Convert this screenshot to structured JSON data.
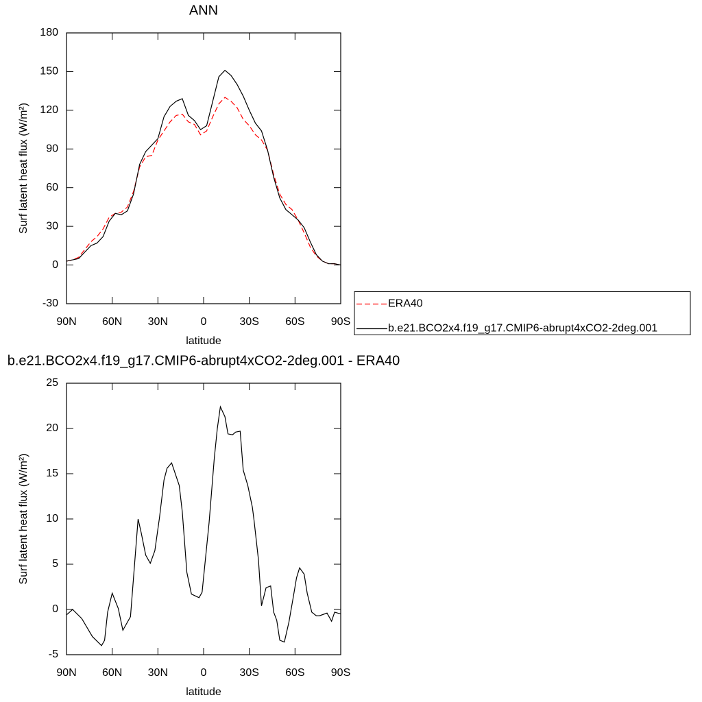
{
  "chart_data": [
    {
      "type": "line",
      "title": "ANN",
      "xlabel": "latitude",
      "ylabel": "Surf latent heat flux (W/m²)",
      "x": [
        90,
        86,
        82,
        78,
        74,
        70,
        66,
        62,
        58,
        54,
        50,
        46,
        42,
        38,
        34,
        30,
        26,
        22,
        18,
        14,
        10,
        6,
        2,
        -2,
        -6,
        -10,
        -14,
        -18,
        -22,
        -26,
        -30,
        -34,
        -38,
        -42,
        -46,
        -50,
        -54,
        -58,
        -62,
        -66,
        -70,
        -74,
        -78,
        -82,
        -86,
        -90
      ],
      "series": [
        {
          "name": "ERA40",
          "color": "#ff0000",
          "linestyle": "dashed",
          "values": [
            3,
            4,
            6,
            12,
            18,
            22,
            28,
            37,
            40,
            41,
            45,
            57,
            76,
            84,
            85,
            97,
            104,
            111,
            116,
            117,
            111,
            109,
            101,
            104,
            115,
            125,
            130,
            127,
            122,
            113,
            108,
            101,
            97,
            89,
            70,
            55,
            47,
            43,
            35,
            25,
            14,
            7,
            3,
            1,
            1,
            0
          ]
        },
        {
          "name": "b.e21.BCO2x4.f19_g17.CMIP6-abrupt4xCO2-2deg.001",
          "color": "#000000",
          "linestyle": "solid",
          "values": [
            3,
            4,
            5,
            10,
            15,
            17,
            22,
            34,
            40,
            39,
            42,
            55,
            78,
            88,
            93,
            98,
            115,
            123,
            127,
            129,
            116,
            112,
            105,
            108,
            127,
            146,
            151,
            147,
            140,
            131,
            120,
            110,
            104,
            89,
            68,
            52,
            43,
            39,
            35,
            29,
            18,
            8,
            3,
            1,
            1,
            0
          ]
        }
      ],
      "xlim": [
        90,
        -90
      ],
      "ylim": [
        -30,
        180
      ],
      "xticks": [
        {
          "value": 90,
          "label": "90N"
        },
        {
          "value": 60,
          "label": "60N"
        },
        {
          "value": 30,
          "label": "30N"
        },
        0,
        {
          "value": -30,
          "label": "30S"
        },
        {
          "value": -60,
          "label": "60S"
        },
        {
          "value": -90,
          "label": "90S"
        }
      ],
      "yticks": [
        -30,
        0,
        30,
        60,
        90,
        120,
        150,
        180
      ],
      "legend": "right"
    },
    {
      "type": "line",
      "title": "b.e21.BCO2x4.f19_g17.CMIP6-abrupt4xCO2-2deg.001 - ERA40",
      "xlabel": "latitude",
      "ylabel": "Surf latent heat flux (W/m²)",
      "x": [
        90,
        86,
        80,
        73,
        67,
        65,
        63,
        60,
        56,
        53,
        48,
        43,
        41,
        38,
        35,
        32,
        29,
        26,
        24,
        21,
        16,
        14,
        11,
        8,
        3,
        1,
        -3.6,
        -7,
        -9,
        -11,
        -14,
        -16,
        -19,
        -21,
        -24,
        -26,
        -29,
        -32,
        -33,
        -36,
        -38,
        -41,
        -44,
        -46,
        -48,
        -50,
        -53,
        -56,
        -59,
        -61,
        -63,
        -66,
        -68,
        -71,
        -74,
        -76,
        -81,
        -84,
        -86,
        -90
      ],
      "series": [
        {
          "color": "#000000",
          "values": [
            -0.6,
            0,
            -1,
            -3,
            -4,
            -3.4,
            -0.3,
            1.8,
            0.1,
            -2.3,
            -0.8,
            10,
            8.5,
            6,
            5.1,
            6.5,
            10.1,
            14.3,
            15.6,
            16.2,
            13.7,
            10.8,
            4.1,
            1.7,
            1.3,
            1.9,
            9.6,
            16.7,
            20,
            22.4,
            21.3,
            19.4,
            19.3,
            19.6,
            19.7,
            15.4,
            13.7,
            11.3,
            10,
            5.5,
            0.4,
            2.4,
            2.6,
            -0.3,
            -1.2,
            -3.4,
            -3.6,
            -1.4,
            1.5,
            3.5,
            4.6,
            3.9,
            1.8,
            -0.3,
            -0.7,
            -0.7,
            -0.4,
            -1.3,
            -0.3,
            -0.5
          ]
        }
      ],
      "xlim": [
        90,
        -90
      ],
      "ylim": [
        -5,
        25
      ],
      "xticks": [
        {
          "value": 90,
          "label": "90N"
        },
        {
          "value": 60,
          "label": "60N"
        },
        {
          "value": 30,
          "label": "30N"
        },
        0,
        {
          "value": -30,
          "label": "30S"
        },
        {
          "value": -60,
          "label": "60S"
        },
        {
          "value": -90,
          "label": "90S"
        }
      ],
      "yticks": [
        -5,
        0,
        5,
        10,
        15,
        20,
        25
      ]
    }
  ]
}
